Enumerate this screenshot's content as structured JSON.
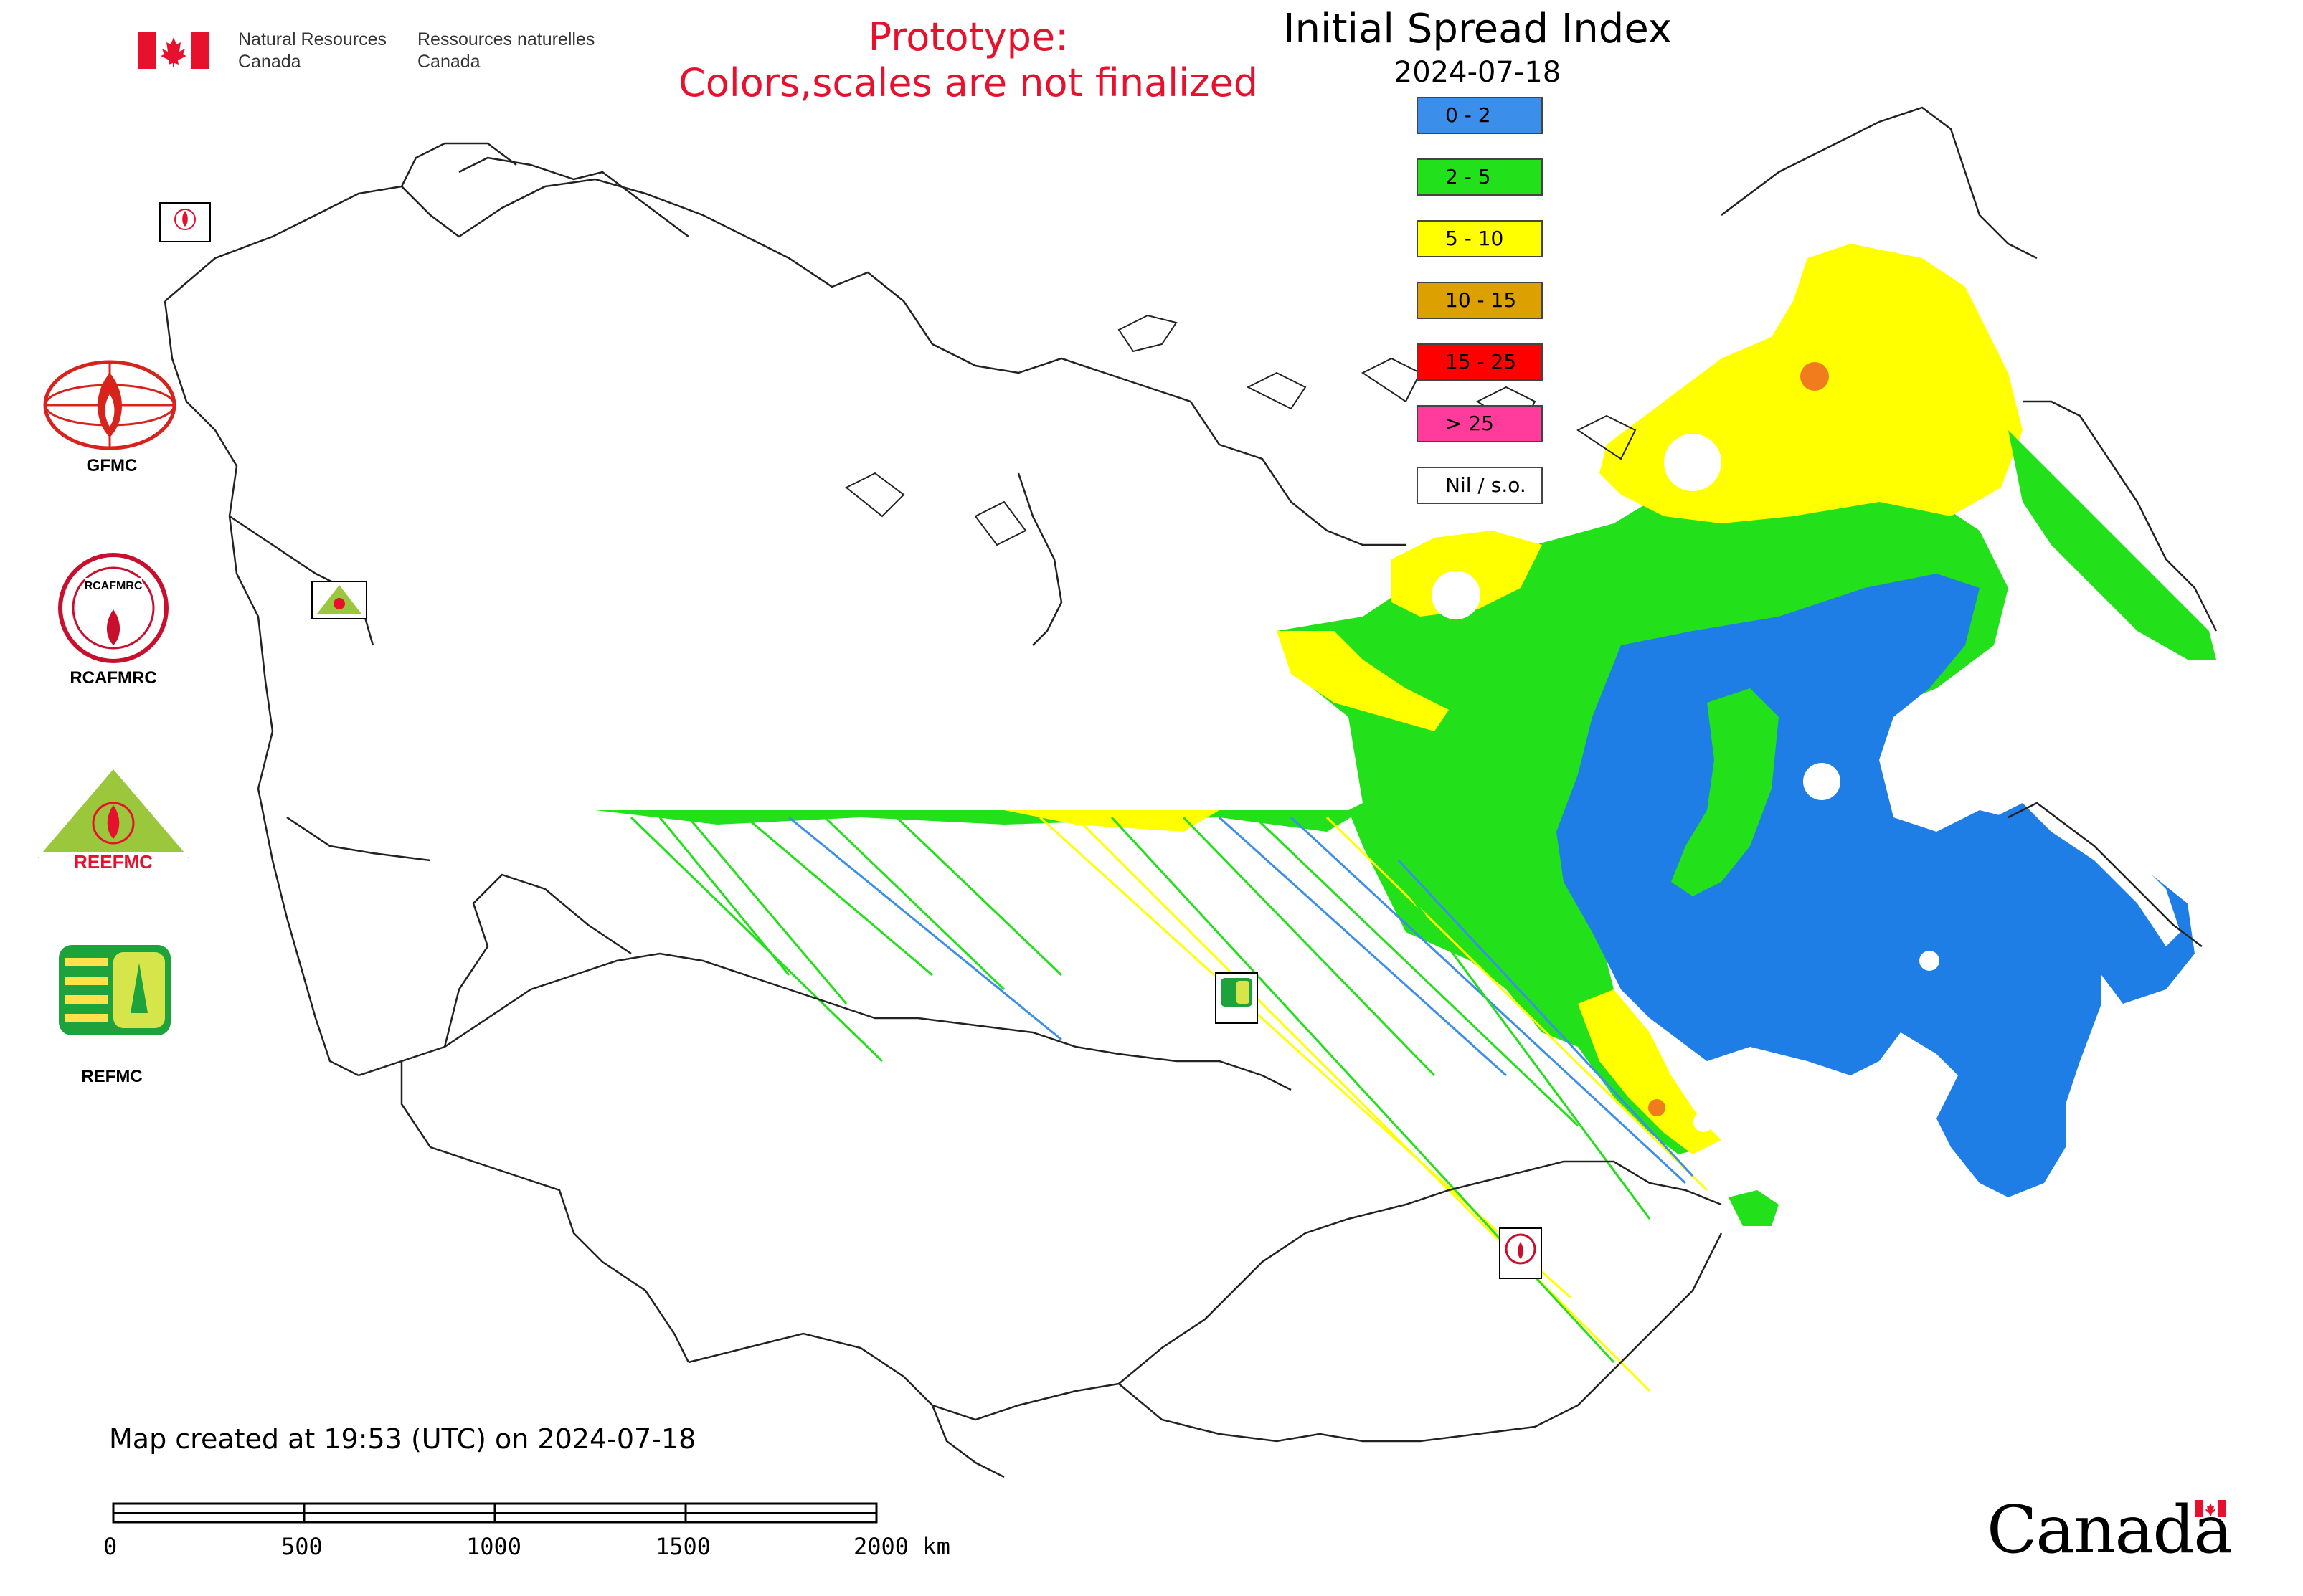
{
  "header": {
    "gov_en_line1": "Natural Resources",
    "gov_en_line2": "Canada",
    "gov_fr_line1": "Ressources naturelles",
    "gov_fr_line2": "Canada",
    "prototype_line1": "Prototype:",
    "prototype_line2": "Colors,scales are not finalized",
    "prototype_color": "#e8112d"
  },
  "map": {
    "title": "Initial Spread Index",
    "date": "2024-07-18"
  },
  "legend": [
    {
      "label": "0 - 2",
      "color": "#3b8eea"
    },
    {
      "label": "2 - 5",
      "color": "#22e01a"
    },
    {
      "label": "5 - 10",
      "color": "#ffff00"
    },
    {
      "label": "10 - 15",
      "color": "#dca000"
    },
    {
      "label": "15 - 25",
      "color": "#ff0000"
    },
    {
      "label": "> 25",
      "color": "#ff3c9c"
    },
    {
      "label": "Nil / s.o.",
      "color": "#ffffff"
    }
  ],
  "logos": {
    "gfmc": "GFMC",
    "rcafmrc": "RCAFMRC",
    "reefmc": "REEFMC",
    "refmc": "REFMC",
    "rcafmrc_badge": "RCAFMRC"
  },
  "footer": {
    "created": "Map created at 19:53 (UTC) on 2024-07-18",
    "scale_labels": [
      "0",
      "500",
      "1000",
      "1500",
      "2000 km"
    ],
    "wordmark": "Canada"
  }
}
